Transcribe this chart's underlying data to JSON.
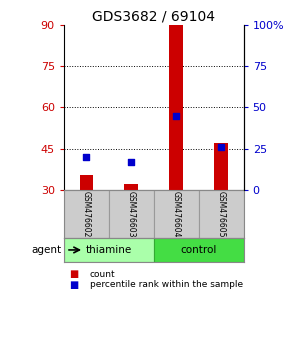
{
  "title": "GDS3682 / 69104",
  "samples": [
    "GSM476602",
    "GSM476603",
    "GSM476604",
    "GSM476605"
  ],
  "count_values": [
    35.5,
    32.0,
    90.0,
    47.0
  ],
  "count_baseline": 30.0,
  "percentile_values": [
    20.0,
    17.0,
    45.0,
    26.0
  ],
  "left_ylim": [
    30,
    90
  ],
  "left_yticks": [
    30,
    45,
    60,
    75,
    90
  ],
  "right_ylim": [
    0,
    100
  ],
  "right_yticks": [
    0,
    25,
    50,
    75,
    100
  ],
  "right_yticklabels": [
    "0",
    "25",
    "50",
    "75",
    "100%"
  ],
  "hlines": [
    45,
    60,
    75
  ],
  "bar_color": "#cc0000",
  "dot_color": "#0000cc",
  "bar_width": 0.3,
  "groups": [
    {
      "label": "thiamine",
      "samples": [
        0,
        1
      ],
      "color": "#aaffaa"
    },
    {
      "label": "control",
      "samples": [
        2,
        3
      ],
      "color": "#44dd44"
    }
  ],
  "agent_label": "agent",
  "legend_count_label": "count",
  "legend_pct_label": "percentile rank within the sample",
  "title_fontsize": 10,
  "axis_label_color_left": "#cc0000",
  "axis_label_color_right": "#0000cc",
  "sample_box_color": "#cccccc",
  "background_color": "#ffffff",
  "group_box_edge_color": "#33aa33",
  "sample_divider_color": "#999999"
}
